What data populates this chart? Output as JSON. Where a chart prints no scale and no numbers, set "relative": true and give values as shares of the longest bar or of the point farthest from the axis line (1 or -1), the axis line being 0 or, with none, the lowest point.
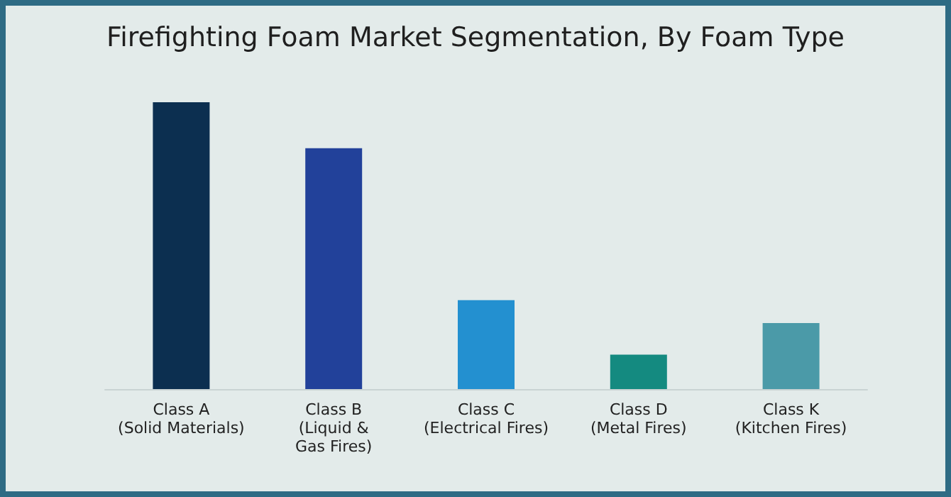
{
  "chart_data": {
    "type": "bar",
    "title": "Firefighting Foam Market Segmentation, By Foam Type",
    "categories": [
      "Class A\n(Solid Materials)",
      "Class B\n(Liquid &\nGas Fires)",
      "Class C\n(Electrical Fires)",
      "Class D\n(Metal Fires)",
      "Class K\n(Kitchen Fires)"
    ],
    "values": [
      1,
      0.84,
      0.31,
      0.12,
      0.23
    ],
    "colors": [
      "#0c2f50",
      "#22419a",
      "#2390d0",
      "#148a80",
      "#4b9aa8"
    ],
    "relative": true
  }
}
